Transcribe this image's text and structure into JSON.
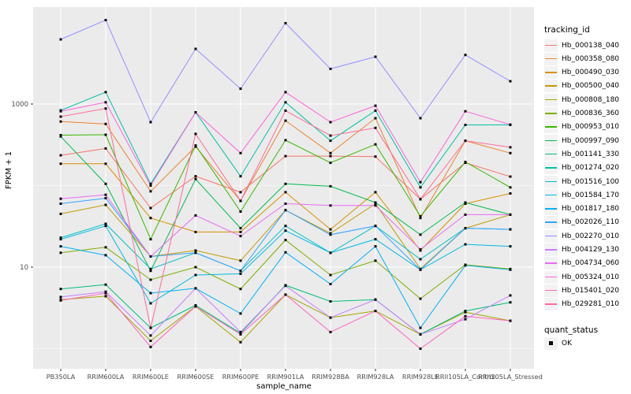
{
  "chart_data": {
    "type": "line",
    "title": "",
    "xlabel": "sample_name",
    "ylabel": "FPKM + 1",
    "y_scale": "log10",
    "grid": true,
    "legend_position": "right",
    "panel_background": "#EBEBEB",
    "gridline_color": "#FFFFFF",
    "axis_text_color": "#4D4D4D",
    "point_color": "#000000",
    "point_shape": "square",
    "y_ticks": [
      {
        "label": "1000",
        "value": 1000
      },
      {
        "label": "10",
        "value": 10
      }
    ],
    "y_minor_gridlines": [
      100,
      1
    ],
    "categories": [
      "PB350LA",
      "RRIM600LA",
      "RRIM600LE",
      "RRIM600SE",
      "RRIM600PE",
      "RRIM901LA",
      "RRIM928BA",
      "RRIM928LA",
      "RRIM928LE",
      "RRII105LA_Control",
      "RRII105LA_Stressed"
    ],
    "series": [
      {
        "name": "Hb_000138_040",
        "color": "#F8766D",
        "values": [
          235,
          285,
          53,
          130,
          83,
          230,
          230,
          227,
          68,
          190,
          129
        ]
      },
      {
        "name": "Hb_000358_080",
        "color": "#EA8331",
        "values": [
          610,
          570,
          85,
          300,
          65,
          625,
          250,
          670,
          40,
          355,
          250
        ]
      },
      {
        "name": "Hb_000490_030",
        "color": "#D89000",
        "values": [
          185,
          185,
          40,
          27,
          27,
          83,
          29,
          83,
          16,
          60,
          80
        ]
      },
      {
        "name": "Hb_000500_040",
        "color": "#C09B00",
        "values": [
          45,
          58,
          13.5,
          16,
          12,
          50,
          26,
          60,
          9.5,
          30,
          44
        ]
      },
      {
        "name": "Hb_000808_180",
        "color": "#A3A500",
        "values": [
          4.0,
          4.4,
          1.25,
          3.3,
          1.2,
          4.6,
          2.4,
          2.9,
          1.5,
          2.8,
          2.2
        ]
      },
      {
        "name": "Hb_000836_360",
        "color": "#7CAE00",
        "values": [
          15,
          17.5,
          7,
          10,
          5.4,
          21.5,
          8,
          12,
          4.1,
          10.7,
          9.5
        ]
      },
      {
        "name": "Hb_000953_010",
        "color": "#39B600",
        "values": [
          415,
          420,
          22,
          310,
          48,
          360,
          190,
          320,
          42,
          195,
          95
        ]
      },
      {
        "name": "Hb_000997_090",
        "color": "#00BB4E",
        "values": [
          400,
          105,
          9,
          120,
          30,
          105,
          98,
          62,
          25,
          62,
          44
        ]
      },
      {
        "name": "Hb_001141_330",
        "color": "#00BF7D",
        "values": [
          5.4,
          6.1,
          1.8,
          3.4,
          1.55,
          6.0,
          3.8,
          4.0,
          1.5,
          2.9,
          3.7
        ]
      },
      {
        "name": "Hb_001274_020",
        "color": "#00C1A3",
        "values": [
          835,
          1400,
          105,
          790,
          130,
          1050,
          355,
          830,
          95,
          555,
          555
        ]
      },
      {
        "name": "Hb_001516_100",
        "color": "#00BFC4",
        "values": [
          23,
          34,
          9.5,
          15,
          9,
          32,
          15,
          32,
          12.5,
          30,
          29
        ]
      },
      {
        "name": "Hb_001584_170",
        "color": "#00BAE0",
        "values": [
          22,
          32,
          3.6,
          8,
          8.3,
          28,
          15,
          22,
          9.3,
          19,
          18
        ]
      },
      {
        "name": "Hb_001817_180",
        "color": "#00B0F6",
        "values": [
          18,
          14,
          4.8,
          5.5,
          2.7,
          15.2,
          6.2,
          18,
          1.8,
          10.5,
          9.3
        ]
      },
      {
        "name": "Hb_002026_110",
        "color": "#35A2FF",
        "values": [
          60,
          70,
          13.5,
          15,
          9,
          50,
          25,
          32,
          9.3,
          30,
          29
        ]
      },
      {
        "name": "Hb_002270_010",
        "color": "#9590FF",
        "values": [
          6200,
          10700,
          600,
          4750,
          1540,
          9800,
          2700,
          3800,
          670,
          4000,
          1900
        ]
      },
      {
        "name": "Hb_004129_130",
        "color": "#C77CFF",
        "values": [
          4.3,
          5.0,
          1.45,
          5.5,
          1.6,
          5.9,
          2.4,
          4.0,
          1.5,
          2.3,
          4.5
        ]
      },
      {
        "name": "Hb_004734_060",
        "color": "#E76BF3",
        "values": [
          69,
          77,
          13.5,
          43,
          24,
          60,
          57,
          57,
          16.5,
          44,
          44
        ]
      },
      {
        "name": "Hb_005324_010",
        "color": "#FA62DB",
        "values": [
          815,
          1050,
          100,
          790,
          250,
          1400,
          600,
          955,
          110,
          815,
          560
        ]
      },
      {
        "name": "Hb_015401_020",
        "color": "#FF62BC",
        "values": [
          3.9,
          4.8,
          1.05,
          3.3,
          1.5,
          4.6,
          1.6,
          2.9,
          1.0,
          2.5,
          2.2
        ]
      },
      {
        "name": "Hb_029281_010",
        "color": "#FF6A98",
        "values": [
          700,
          880,
          1.8,
          430,
          65,
          830,
          410,
          510,
          68,
          355,
          295
        ]
      }
    ],
    "legend": {
      "series_title": "tracking_id",
      "status_title": "quant_status",
      "status_items": [
        {
          "label": "OK",
          "marker": "black-square"
        }
      ]
    }
  }
}
